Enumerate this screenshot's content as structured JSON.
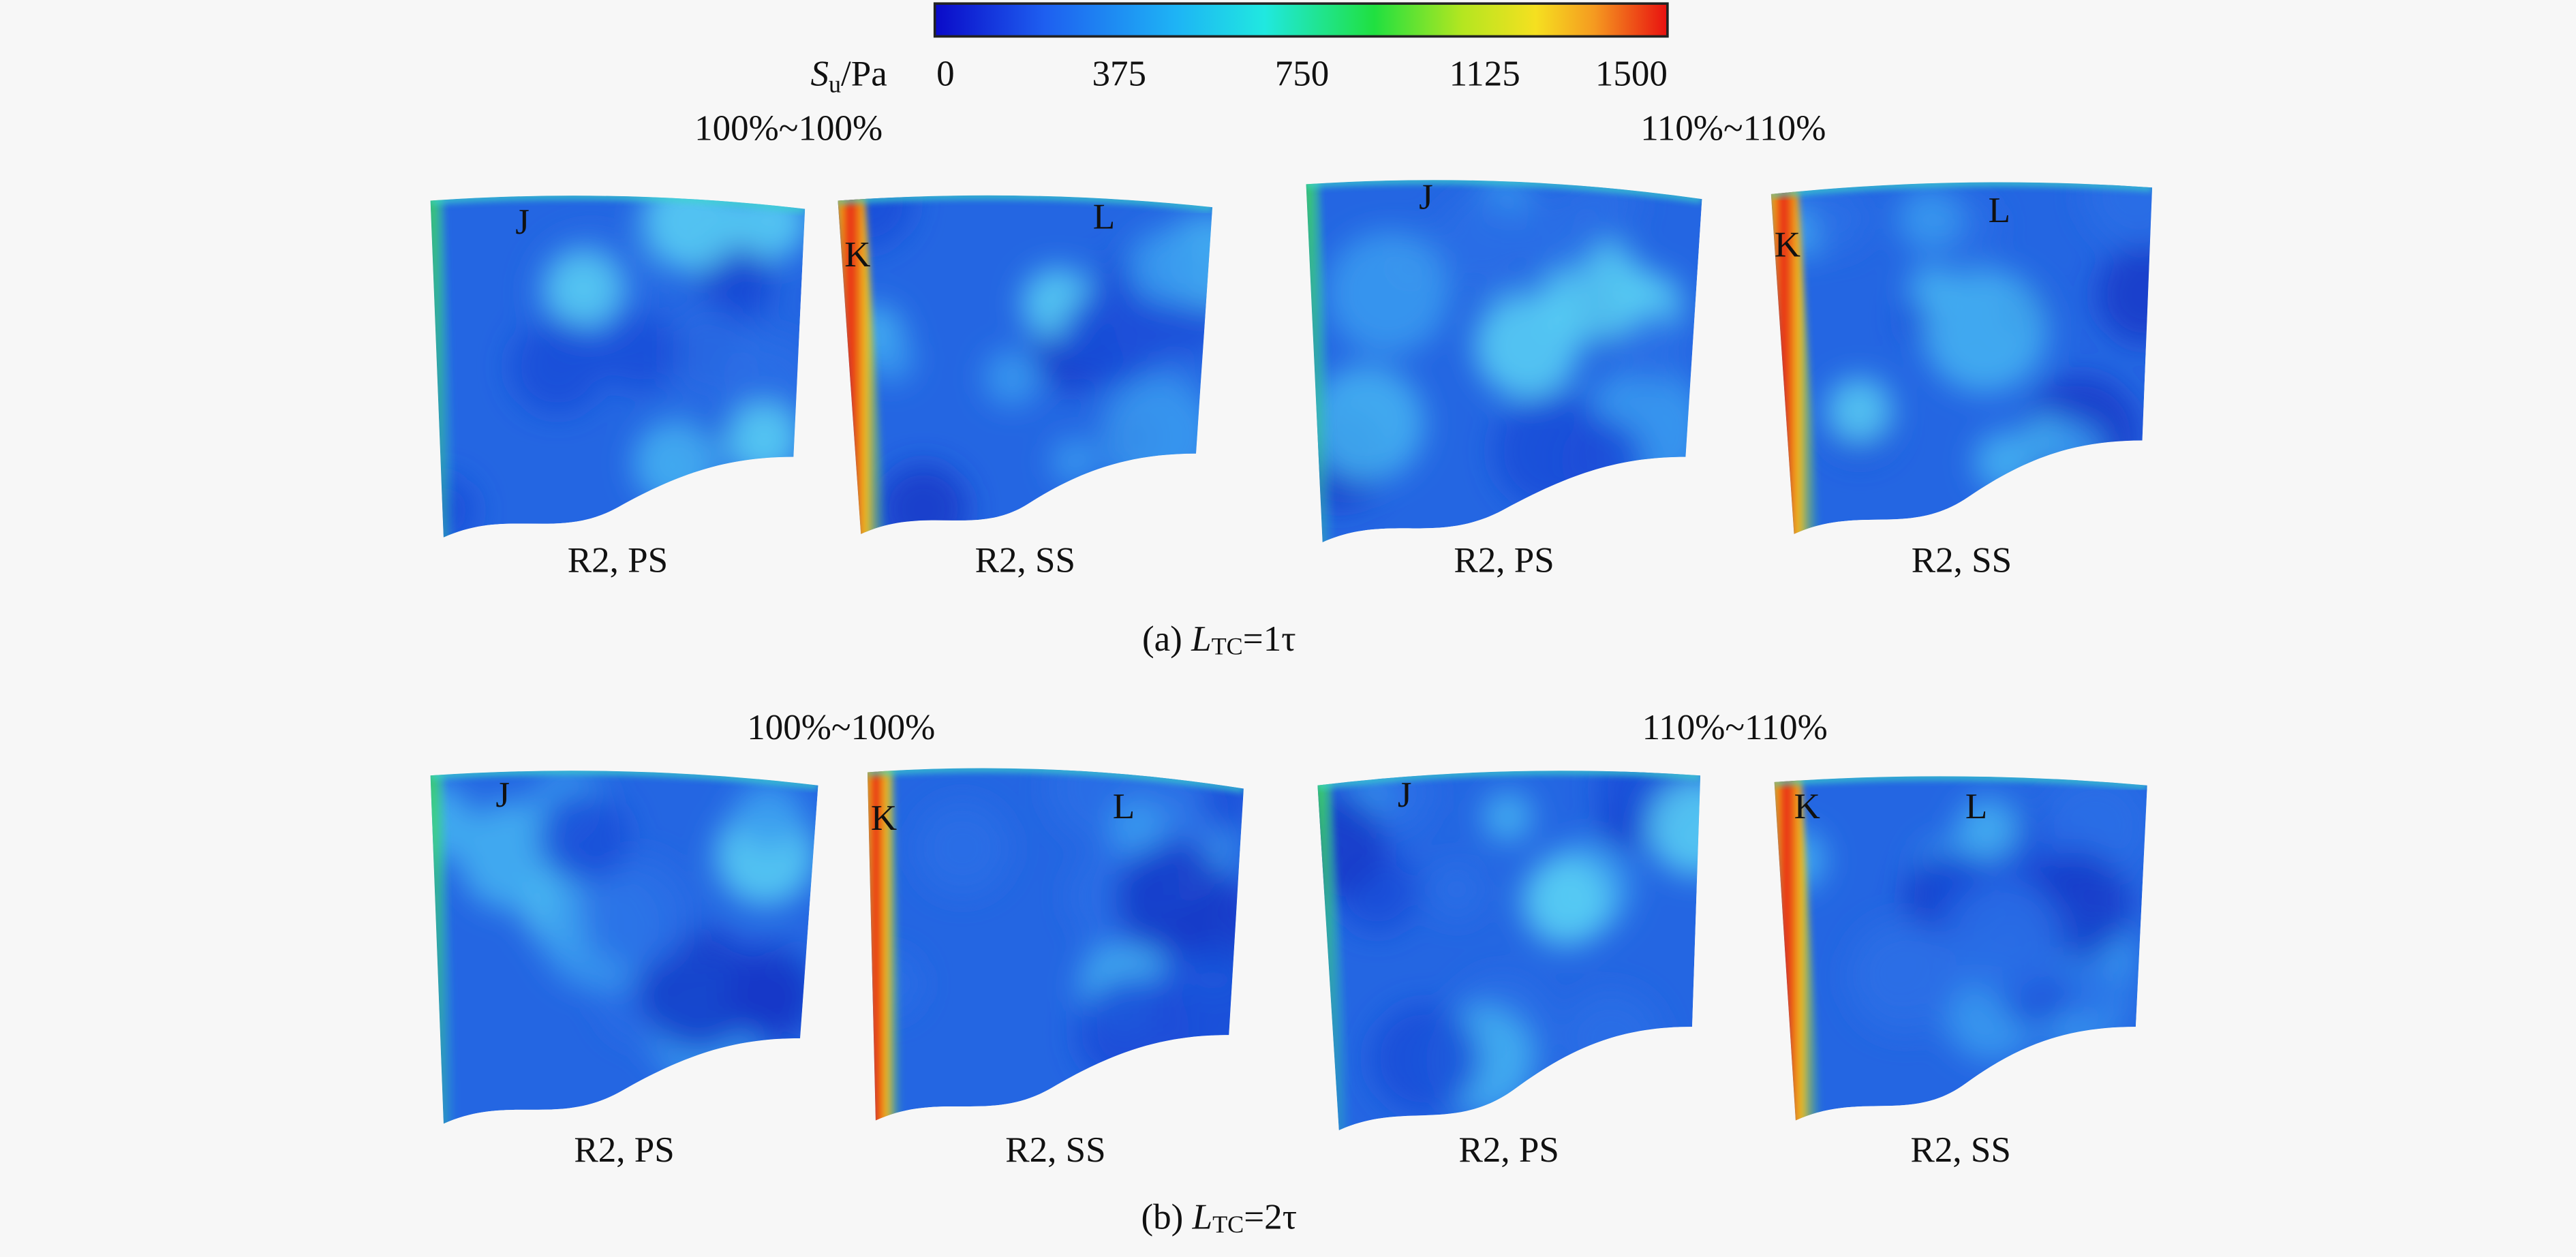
{
  "colorbar": {
    "symbol": "S",
    "subscript": "u",
    "unit": "/Pa",
    "ticks": [
      0,
      375,
      750,
      1125,
      1500
    ]
  },
  "rows": [
    {
      "groups": [
        {
          "title": "100%~100%",
          "panels": [
            {
              "label": "R2, PS",
              "markers": [
                "J"
              ]
            },
            {
              "label": "R2, SS",
              "markers": [
                "K",
                "L"
              ]
            }
          ]
        },
        {
          "title": "110%~110%",
          "panels": [
            {
              "label": "R2, PS",
              "markers": [
                "J"
              ]
            },
            {
              "label": "R2, SS",
              "markers": [
                "K",
                "L"
              ]
            }
          ]
        }
      ],
      "caption": {
        "prefix": "(a) ",
        "symbol": "L",
        "subscript": "TC",
        "suffix": "=1τ"
      }
    },
    {
      "groups": [
        {
          "title": "100%~100%",
          "panels": [
            {
              "label": "R2, PS",
              "markers": [
                "J"
              ]
            },
            {
              "label": "R2, SS",
              "markers": [
                "K",
                "L"
              ]
            }
          ]
        },
        {
          "title": "110%~110%",
          "panels": [
            {
              "label": "R2, PS",
              "markers": [
                "J"
              ]
            },
            {
              "label": "R2, SS",
              "markers": [
                "K",
                "L"
              ]
            }
          ]
        }
      ],
      "caption": {
        "prefix": "(b) ",
        "symbol": "L",
        "subscript": "TC",
        "suffix": "=2τ"
      }
    }
  ]
}
